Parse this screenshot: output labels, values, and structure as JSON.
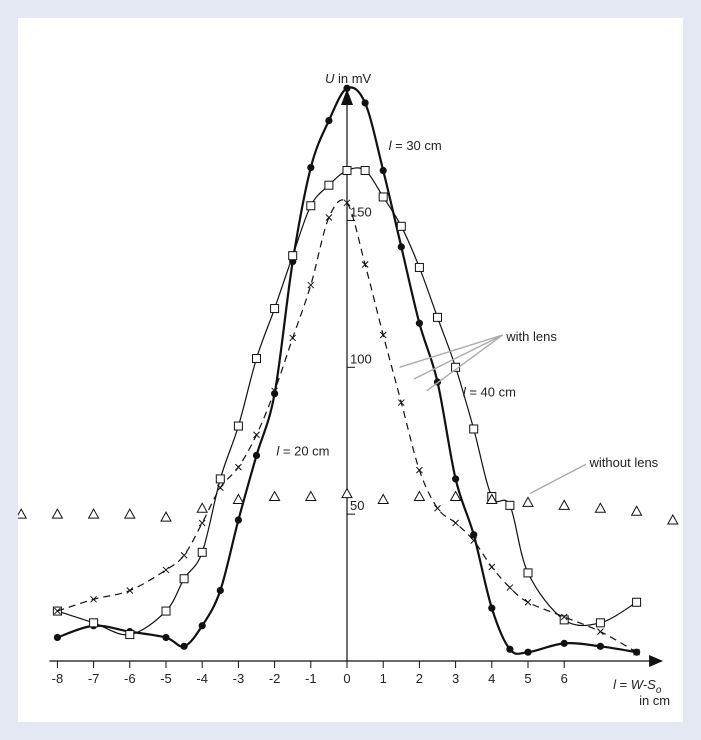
{
  "chart_data": {
    "type": "line",
    "ylabel_var": "U",
    "ylabel_unit": " in mV",
    "xlabel_line1_var": "l",
    "xlabel_line1_eq": " = ",
    "xlabel_line1_expr": "W-S",
    "xlabel_line1_sub": "o",
    "xlabel_line2": "in cm",
    "x_ticks": [
      -8,
      -7,
      -6,
      -5,
      -4,
      -3,
      -2,
      -1,
      0,
      1,
      2,
      3,
      4,
      5,
      6
    ],
    "y_ticks": [
      50,
      100,
      150
    ],
    "xlim": [
      -8,
      8.4
    ],
    "ylim": [
      0,
      190
    ],
    "colors": {
      "line": "#111111",
      "leader": "#aaaaaa",
      "frame": "#e3e8f3"
    },
    "series": [
      {
        "label_var": "l",
        "label_text": " = 30 cm",
        "marker": "filled-circle",
        "dash": "solid",
        "stroke": 2.2,
        "points": [
          [
            -8,
            8
          ],
          [
            -7,
            12
          ],
          [
            -6,
            10
          ],
          [
            -5,
            8
          ],
          [
            -4.5,
            5
          ],
          [
            -4,
            12
          ],
          [
            -3.5,
            24
          ],
          [
            -3,
            48
          ],
          [
            -2.5,
            70
          ],
          [
            -2,
            91
          ],
          [
            -1.5,
            136
          ],
          [
            -1,
            168
          ],
          [
            -0.5,
            184
          ],
          [
            0,
            195
          ],
          [
            0.5,
            190
          ],
          [
            1,
            167
          ],
          [
            1.5,
            141
          ],
          [
            2,
            115
          ],
          [
            2.5,
            95
          ],
          [
            3,
            62
          ],
          [
            3.5,
            43
          ],
          [
            4,
            18
          ],
          [
            4.5,
            4
          ],
          [
            5,
            3
          ],
          [
            6,
            6
          ],
          [
            7,
            5
          ],
          [
            8,
            3
          ]
        ]
      },
      {
        "label_var": "l",
        "label_text": " = 40 cm",
        "marker": "open-square",
        "dash": "solid",
        "stroke": 1.2,
        "points": [
          [
            -8,
            17
          ],
          [
            -7,
            13
          ],
          [
            -6,
            9
          ],
          [
            -5,
            17
          ],
          [
            -4.5,
            28
          ],
          [
            -4,
            37
          ],
          [
            -3.5,
            62
          ],
          [
            -3,
            80
          ],
          [
            -2.5,
            103
          ],
          [
            -2,
            120
          ],
          [
            -1.5,
            138
          ],
          [
            -1,
            155
          ],
          [
            -0.5,
            162
          ],
          [
            0,
            167
          ],
          [
            0.5,
            167
          ],
          [
            1,
            158
          ],
          [
            1.5,
            148
          ],
          [
            2,
            134
          ],
          [
            2.5,
            117
          ],
          [
            3,
            100
          ],
          [
            3.5,
            79
          ],
          [
            4,
            56
          ],
          [
            4.5,
            53
          ],
          [
            5,
            30
          ],
          [
            6,
            14
          ],
          [
            7,
            13
          ],
          [
            8,
            20
          ]
        ]
      },
      {
        "label_var": "l",
        "label_text": " = 20 cm",
        "marker": "cross",
        "dash": "dashed",
        "stroke": 1.2,
        "points": [
          [
            -8,
            17
          ],
          [
            -7,
            21
          ],
          [
            -6,
            24
          ],
          [
            -5,
            31
          ],
          [
            -4.5,
            36
          ],
          [
            -4,
            47
          ],
          [
            -3.5,
            59
          ],
          [
            -3,
            66
          ],
          [
            -2.5,
            77
          ],
          [
            -2,
            92
          ],
          [
            -1.5,
            110
          ],
          [
            -1,
            128
          ],
          [
            -0.5,
            151
          ],
          [
            0,
            156
          ],
          [
            0.5,
            135
          ],
          [
            1,
            111
          ],
          [
            1.5,
            88
          ],
          [
            2,
            65
          ],
          [
            2.5,
            52
          ],
          [
            3,
            47
          ],
          [
            3.5,
            41
          ],
          [
            4,
            32
          ],
          [
            4.5,
            25
          ],
          [
            5,
            20
          ],
          [
            6,
            15
          ],
          [
            7,
            10
          ],
          [
            8,
            3
          ]
        ]
      },
      {
        "label_text": "without lens",
        "marker": "open-triangle",
        "dash": "none",
        "stroke": 1,
        "points": [
          [
            -8,
            50
          ],
          [
            -7,
            50
          ],
          [
            -6,
            50
          ],
          [
            -5,
            49
          ],
          [
            -4,
            52
          ],
          [
            -3,
            55
          ],
          [
            -2,
            56
          ],
          [
            -1,
            56
          ],
          [
            0,
            57
          ],
          [
            1,
            55
          ],
          [
            2,
            56
          ],
          [
            3,
            56
          ],
          [
            4,
            55
          ],
          [
            5,
            54
          ],
          [
            6,
            53
          ],
          [
            7,
            52
          ],
          [
            8,
            51
          ],
          [
            9,
            48
          ],
          [
            -9,
            50
          ]
        ]
      }
    ],
    "annotation_with_lens": "with lens",
    "annotation_without_lens": "without lens"
  }
}
